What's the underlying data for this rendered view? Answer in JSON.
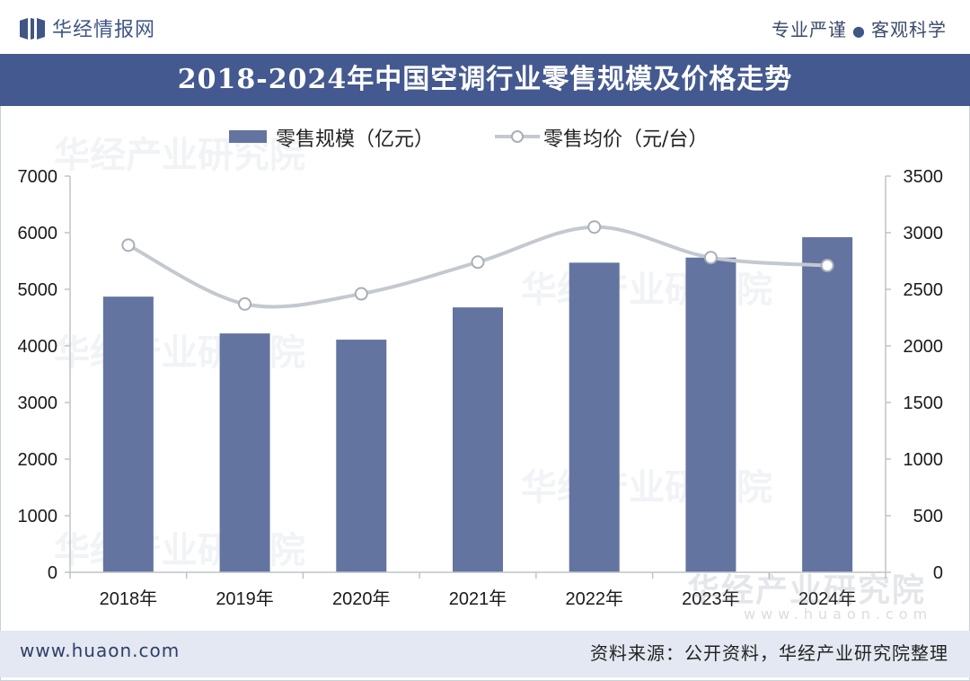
{
  "header": {
    "brand": "华经情报网",
    "slogan_left": "专业严谨",
    "slogan_right": "客观科学",
    "title": "2018-2024年中国空调行业零售规模及价格走势"
  },
  "colors": {
    "bar": "#6374a0",
    "line": "#c4c8cf",
    "title_band": "#44598f",
    "footer_band": "#e4e8f2"
  },
  "chart_data": {
    "type": "bar+line",
    "title": "2018-2024年中国空调行业零售规模及价格走势",
    "categories": [
      "2018年",
      "2019年",
      "2020年",
      "2021年",
      "2022年",
      "2023年",
      "2024年"
    ],
    "series": [
      {
        "name": "零售规模（亿元）",
        "type": "bar",
        "axis": "left",
        "values": [
          4870,
          4220,
          4110,
          4680,
          5470,
          5560,
          5920
        ]
      },
      {
        "name": "零售均价（元/台）",
        "type": "line",
        "axis": "right",
        "values": [
          2890,
          2370,
          2460,
          2740,
          3050,
          2780,
          2710
        ]
      }
    ],
    "y_left": {
      "min": 0,
      "max": 7000,
      "ticks": [
        "0",
        "1000",
        "2000",
        "3000",
        "4000",
        "5000",
        "6000",
        "7000"
      ]
    },
    "y_right": {
      "min": 0,
      "max": 3500,
      "ticks": [
        "0",
        "500",
        "1000",
        "1500",
        "2000",
        "2500",
        "3000",
        "3500"
      ]
    },
    "legend": "top",
    "grid": false
  },
  "watermark": {
    "text": "华经产业研究院",
    "url": "www.huaon.com"
  },
  "footer": {
    "website": "www.huaon.com",
    "source": "资料来源：公开资料，华经产业研究院整理"
  }
}
